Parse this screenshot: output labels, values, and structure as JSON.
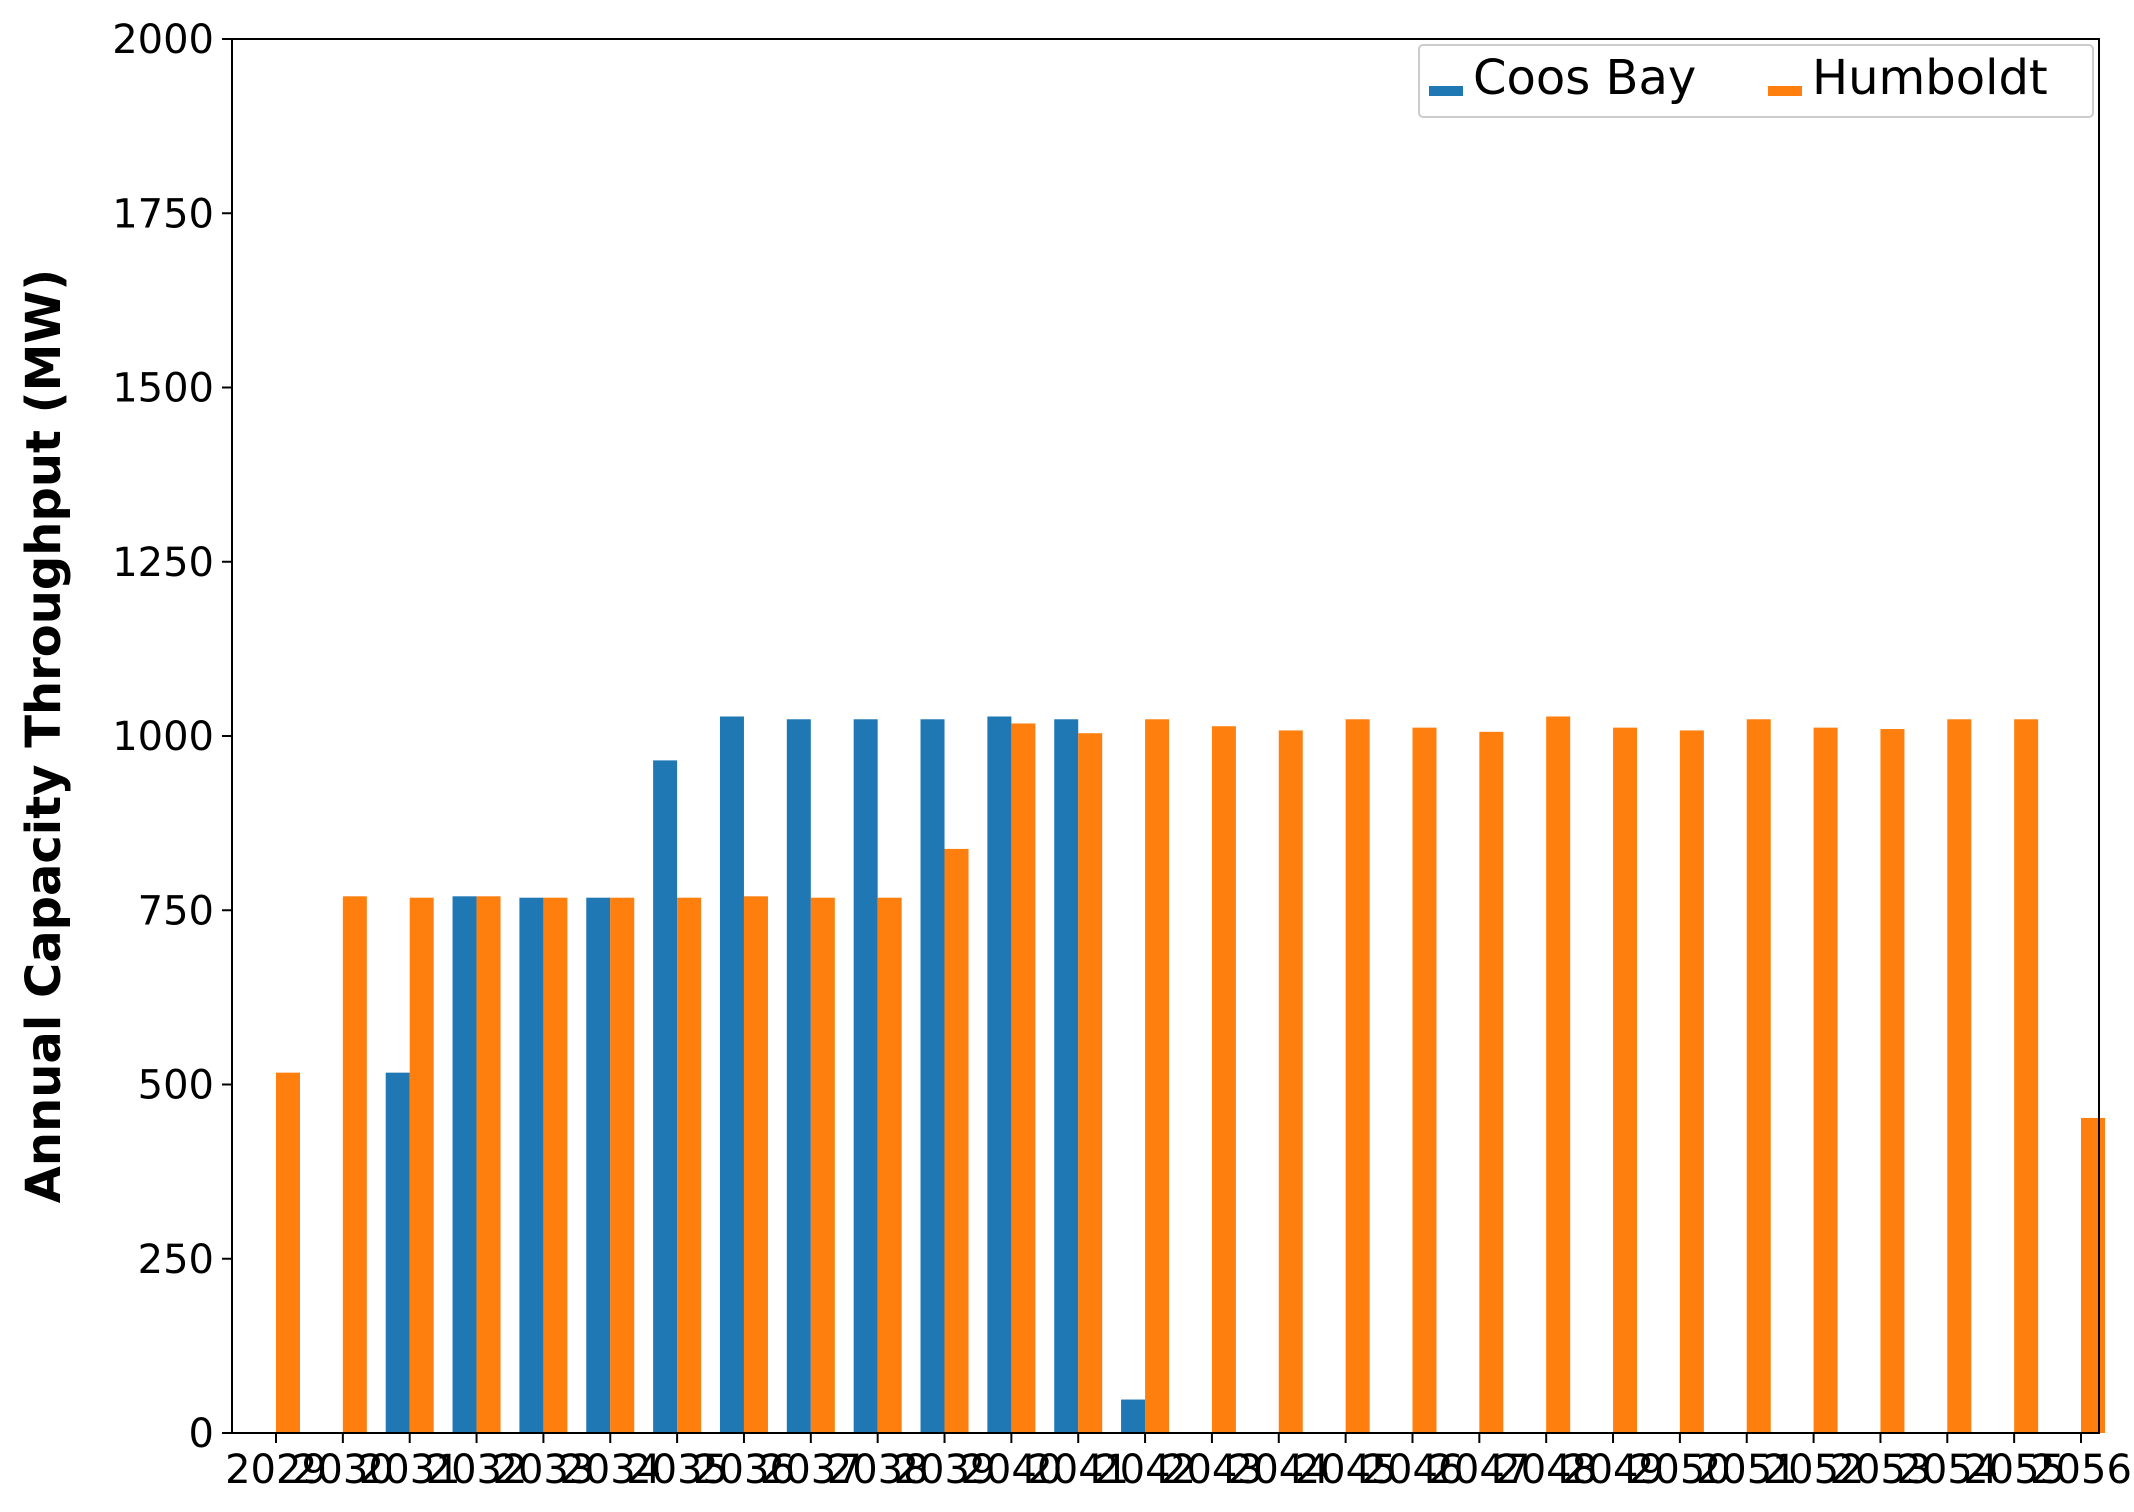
{
  "chart_data": {
    "type": "bar",
    "title": "",
    "xlabel": "",
    "ylabel": "Annual Capacity Throughput (MW)",
    "ylim": [
      0,
      2000
    ],
    "yticks": [
      "0",
      "250",
      "500",
      "750",
      "1000",
      "1250",
      "1500",
      "1750",
      "2000"
    ],
    "grid": false,
    "legend_position": "top-right",
    "categories": [
      "2029",
      "2030",
      "2031",
      "2032",
      "2033",
      "2034",
      "2035",
      "2036",
      "2037",
      "2038",
      "2039",
      "2040",
      "2041",
      "2042",
      "2043",
      "2044",
      "2045",
      "2046",
      "2047",
      "2048",
      "2049",
      "2050",
      "2051",
      "2052",
      "2053",
      "2054",
      "2055",
      "2056"
    ],
    "series": [
      {
        "name": "Coos Bay",
        "color": "#1f77b4",
        "values": [
          0,
          0,
          517,
          770,
          768,
          768,
          965,
          1028,
          1024,
          1024,
          1024,
          1028,
          1024,
          48,
          0,
          0,
          0,
          0,
          0,
          0,
          0,
          0,
          0,
          0,
          0,
          0,
          0,
          0
        ]
      },
      {
        "name": "Humboldt",
        "color": "#ff7f0e",
        "values": [
          517,
          770,
          768,
          770,
          768,
          768,
          768,
          770,
          768,
          768,
          838,
          1018,
          1004,
          1024,
          1014,
          1008,
          1024,
          1012,
          1006,
          1028,
          1012,
          1008,
          1024,
          1012,
          1010,
          1024,
          1024,
          452
        ]
      }
    ]
  }
}
